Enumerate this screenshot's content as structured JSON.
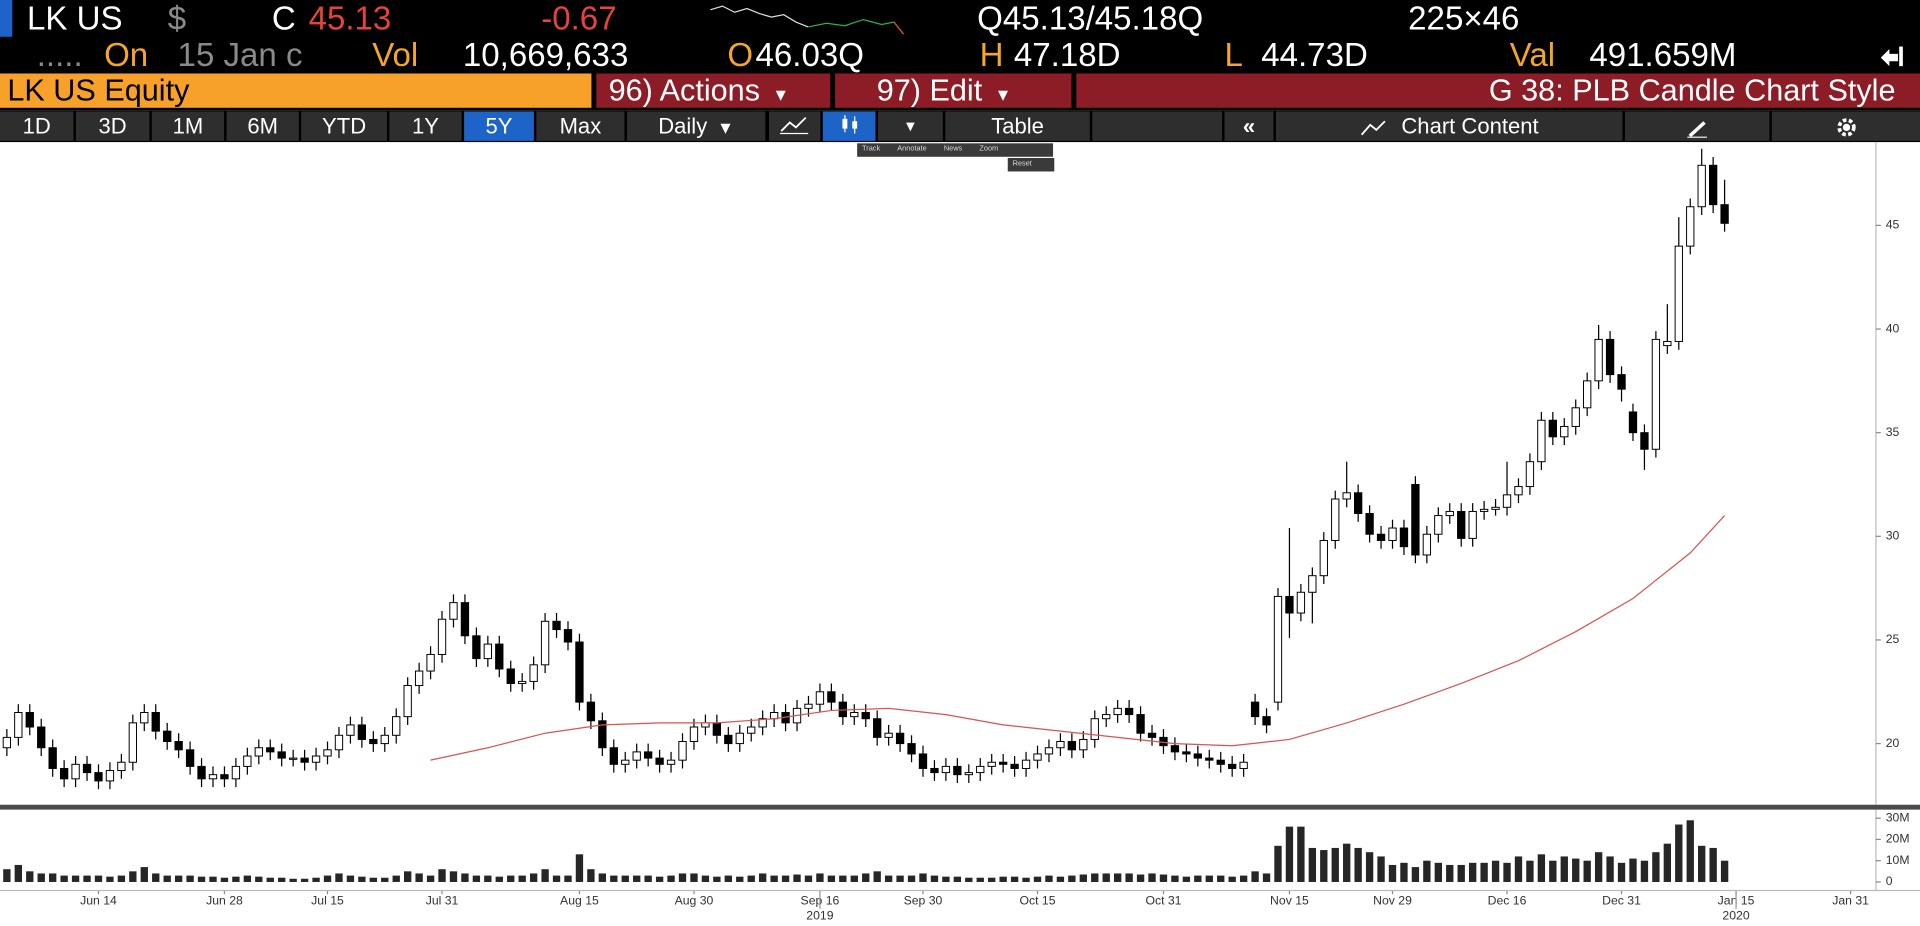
{
  "header": {
    "ticker": "LK US",
    "currency": "$",
    "close_label": "C",
    "close": "45.13",
    "change": "-0.67",
    "quote": "Q45.13/45.18Q",
    "size": "225×46",
    "dots": ".....",
    "on_label": "On",
    "date": "15 Jan c",
    "vol_label": "Vol",
    "volume": "10,669,633",
    "open_label": "O",
    "open": "46.03Q",
    "high_label": "H",
    "high": "47.18D",
    "low_label": "L",
    "low": "44.73D",
    "val_label": "Val",
    "value": "491.659M"
  },
  "menu": {
    "security": "LK US Equity",
    "actions": "96) Actions",
    "edit": "97) Edit",
    "function": "G 38: PLB Candle Chart Style"
  },
  "toolbar": {
    "ranges": [
      "1D",
      "3D",
      "1M",
      "6M",
      "YTD",
      "1Y",
      "5Y",
      "Max"
    ],
    "active_range": "5Y",
    "frequency": "Daily",
    "table": "Table",
    "content": "Chart Content",
    "popup": [
      "Track",
      "Annotate",
      "News",
      "Zoom"
    ],
    "reset": "Reset"
  },
  "chart_data": [
    {
      "type": "candlestick",
      "open": [
        19.8,
        20.3,
        21.5,
        20.8,
        19.8,
        18.8,
        18.3,
        19.0,
        18.6,
        18.2,
        18.7,
        19.1,
        21.0,
        21.5,
        20.6,
        20.1,
        19.7,
        18.9,
        18.3,
        18.5,
        18.3,
        18.9,
        19.4,
        19.8,
        19.6,
        19.3,
        19.3,
        19.1,
        19.4,
        19.7,
        20.4,
        20.9,
        20.2,
        20.0,
        20.4,
        21.3,
        22.8,
        23.5,
        24.3,
        26.0,
        26.8,
        25.2,
        24.1,
        24.8,
        23.6,
        22.9,
        23.0,
        23.8,
        25.9,
        25.5,
        24.9,
        22.0,
        21.1,
        19.8,
        19.0,
        19.2,
        19.6,
        19.3,
        19.0,
        19.2,
        20.1,
        20.8,
        21.0,
        20.4,
        20.0,
        20.5,
        20.8,
        21.2,
        21.5,
        21.0,
        21.7,
        21.9,
        22.5,
        22.0,
        21.3,
        21.5,
        21.2,
        20.3,
        20.5,
        20.0,
        19.5,
        18.8,
        18.6,
        18.9,
        18.5,
        18.6,
        18.9,
        19.1,
        19.0,
        18.8,
        19.2,
        19.5,
        19.8,
        20.1,
        19.7,
        20.2,
        21.2,
        21.4,
        21.7,
        21.4,
        20.5,
        20.3,
        19.9,
        19.6,
        19.5,
        19.3,
        19.2,
        19.0,
        18.8,
        22.0,
        21.3,
        22.0,
        27.1,
        26.3,
        27.3,
        28.1,
        29.8,
        31.8,
        32.1,
        31.1,
        30.1,
        29.8,
        30.4,
        32.5,
        29.1,
        30.1,
        31.0,
        31.2,
        29.9,
        31.2,
        31.3,
        31.4,
        32.0,
        32.4,
        33.6,
        35.6,
        34.8,
        35.3,
        36.2,
        37.5,
        39.5,
        37.8,
        36.0,
        35.0,
        34.2,
        39.2,
        39.4,
        44.0,
        45.9,
        47.9,
        46.0
      ],
      "high": [
        20.7,
        21.9,
        21.9,
        21.2,
        20.2,
        19.2,
        19.4,
        19.4,
        19.0,
        19.1,
        19.5,
        21.4,
        21.9,
        21.9,
        21.0,
        20.5,
        20.1,
        19.3,
        18.9,
        18.9,
        19.3,
        19.8,
        20.2,
        20.2,
        20.0,
        19.7,
        19.7,
        19.8,
        20.1,
        20.8,
        21.3,
        21.3,
        20.6,
        20.8,
        21.7,
        23.2,
        23.9,
        24.7,
        26.4,
        27.2,
        27.2,
        25.6,
        25.2,
        25.2,
        24.0,
        23.4,
        24.2,
        26.3,
        26.3,
        25.9,
        25.3,
        22.4,
        21.5,
        20.2,
        19.6,
        20.0,
        20.0,
        19.7,
        19.6,
        20.5,
        21.2,
        21.4,
        21.4,
        20.8,
        20.9,
        21.2,
        21.6,
        21.9,
        21.9,
        22.1,
        22.3,
        22.9,
        22.9,
        22.4,
        21.9,
        21.9,
        21.6,
        20.9,
        20.9,
        20.4,
        19.9,
        19.2,
        19.3,
        19.3,
        19.0,
        19.3,
        19.5,
        19.5,
        19.4,
        19.6,
        19.9,
        20.2,
        20.5,
        20.5,
        20.6,
        21.6,
        21.8,
        22.1,
        22.1,
        21.8,
        20.9,
        20.7,
        20.3,
        20.0,
        19.9,
        19.7,
        19.6,
        19.4,
        19.5,
        22.4,
        21.7,
        27.5,
        30.4,
        27.7,
        28.5,
        30.2,
        32.2,
        33.6,
        32.5,
        31.5,
        30.5,
        30.8,
        30.8,
        32.9,
        30.5,
        31.4,
        31.6,
        31.6,
        31.6,
        31.7,
        31.8,
        33.6,
        32.8,
        34.0,
        36.0,
        36.0,
        35.7,
        36.6,
        37.9,
        40.2,
        39.9,
        38.2,
        36.4,
        35.4,
        39.9,
        41.2,
        45.4,
        46.3,
        48.7,
        48.3,
        47.2
      ],
      "low": [
        19.4,
        19.9,
        20.4,
        19.4,
        18.4,
        17.9,
        17.9,
        18.2,
        17.8,
        17.8,
        18.3,
        18.7,
        20.6,
        20.2,
        19.7,
        19.3,
        18.5,
        17.9,
        17.9,
        17.9,
        17.9,
        18.5,
        19.0,
        19.2,
        18.9,
        18.9,
        18.7,
        18.7,
        19.0,
        19.3,
        20.0,
        19.8,
        19.6,
        19.6,
        20.0,
        20.9,
        22.4,
        23.1,
        23.9,
        25.6,
        24.8,
        23.7,
        23.7,
        23.2,
        22.5,
        22.5,
        22.6,
        23.4,
        25.1,
        24.5,
        21.6,
        20.7,
        19.4,
        18.6,
        18.6,
        18.8,
        18.9,
        18.6,
        18.6,
        18.8,
        19.7,
        20.4,
        20.0,
        19.6,
        19.6,
        20.1,
        20.4,
        20.8,
        20.6,
        20.6,
        21.3,
        21.5,
        21.6,
        20.9,
        20.9,
        20.8,
        19.9,
        19.9,
        19.6,
        19.1,
        18.4,
        18.2,
        18.2,
        18.1,
        18.1,
        18.2,
        18.5,
        18.6,
        18.4,
        18.4,
        18.8,
        19.1,
        19.4,
        19.3,
        19.3,
        19.8,
        20.8,
        21.0,
        21.0,
        20.1,
        19.9,
        19.5,
        19.2,
        19.1,
        18.9,
        18.8,
        18.6,
        18.4,
        18.4,
        20.9,
        20.5,
        21.6,
        25.1,
        25.9,
        25.8,
        27.7,
        29.4,
        31.4,
        30.7,
        29.7,
        29.4,
        29.4,
        29.1,
        28.7,
        28.7,
        29.7,
        30.6,
        29.5,
        29.5,
        30.8,
        31.0,
        31.0,
        31.6,
        32.0,
        33.2,
        34.4,
        34.4,
        34.9,
        35.8,
        37.1,
        37.4,
        36.5,
        34.6,
        33.2,
        33.8,
        38.8,
        39.0,
        43.6,
        45.5,
        45.6,
        44.7
      ],
      "close": [
        20.3,
        21.5,
        20.8,
        19.8,
        18.8,
        18.3,
        19.0,
        18.6,
        18.2,
        18.7,
        19.1,
        21.0,
        21.5,
        20.6,
        20.1,
        19.7,
        18.9,
        18.3,
        18.5,
        18.3,
        18.9,
        19.4,
        19.8,
        19.6,
        19.3,
        19.3,
        19.1,
        19.4,
        19.7,
        20.4,
        20.9,
        20.2,
        20.0,
        20.4,
        21.3,
        22.8,
        23.5,
        24.3,
        26.0,
        26.8,
        25.2,
        24.1,
        24.8,
        23.6,
        22.9,
        23.0,
        23.8,
        25.9,
        25.5,
        24.9,
        22.0,
        21.1,
        19.8,
        19.0,
        19.2,
        19.6,
        19.3,
        19.0,
        19.2,
        20.1,
        20.8,
        21.0,
        20.4,
        20.0,
        20.5,
        20.8,
        21.2,
        21.5,
        21.0,
        21.7,
        21.9,
        22.5,
        22.0,
        21.3,
        21.5,
        21.2,
        20.3,
        20.5,
        20.0,
        19.5,
        18.8,
        18.6,
        18.9,
        18.5,
        18.6,
        18.9,
        19.1,
        19.0,
        18.8,
        19.2,
        19.5,
        19.8,
        20.1,
        19.7,
        20.2,
        21.2,
        21.4,
        21.7,
        21.4,
        20.5,
        20.3,
        19.9,
        19.6,
        19.5,
        19.3,
        19.2,
        19.0,
        18.8,
        19.1,
        21.3,
        20.9,
        27.1,
        26.3,
        27.3,
        28.1,
        29.8,
        31.8,
        32.1,
        31.1,
        30.1,
        29.8,
        30.4,
        29.5,
        29.1,
        30.1,
        31.0,
        31.2,
        29.9,
        31.2,
        31.3,
        31.4,
        32.0,
        32.4,
        33.6,
        35.6,
        34.8,
        35.3,
        36.2,
        37.5,
        39.5,
        37.8,
        37.1,
        35.0,
        34.2,
        39.5,
        39.4,
        44.0,
        45.9,
        47.9,
        46.0,
        45.1
      ],
      "up_color": "#ffffff",
      "down_color": "#000000",
      "moving_average": {
        "color": "#d9534f",
        "x": [
          37,
          42,
          47,
          52,
          57,
          62,
          67,
          72,
          77,
          82,
          87,
          92,
          97,
          102,
          107,
          112,
          117,
          122,
          127,
          132,
          137,
          142,
          147,
          150
        ],
        "values": [
          19.2,
          19.8,
          20.5,
          20.9,
          21.0,
          21.0,
          21.2,
          21.6,
          21.7,
          21.4,
          20.9,
          20.6,
          20.3,
          20.0,
          19.9,
          20.2,
          21.0,
          21.9,
          22.9,
          24.0,
          25.4,
          27.0,
          29.2,
          31.0
        ]
      },
      "xlim": [
        -0.6,
        163
      ],
      "xticks": [
        {
          "value": 8,
          "label": "Jun 14"
        },
        {
          "value": 19,
          "label": "Jun 28"
        },
        {
          "value": 28,
          "label": "Jul 15"
        },
        {
          "value": 38,
          "label": "Jul 31"
        },
        {
          "value": 50,
          "label": "Aug 15"
        },
        {
          "value": 60,
          "label": "Aug 30"
        },
        {
          "value": 71,
          "label": "Sep 16"
        },
        {
          "value": 80,
          "label": "Sep 30"
        },
        {
          "value": 90,
          "label": "Oct 15"
        },
        {
          "value": 101,
          "label": "Oct 31"
        },
        {
          "value": 112,
          "label": "Nov 15"
        },
        {
          "value": 121,
          "label": "Nov 29"
        },
        {
          "value": 131,
          "label": "Dec 16"
        },
        {
          "value": 141,
          "label": "Dec 31"
        },
        {
          "value": 151,
          "label": "Jan 15"
        },
        {
          "value": 161,
          "label": "Jan 31"
        }
      ],
      "year_ticks": [
        {
          "value": 71,
          "label": "2019"
        },
        {
          "value": 151,
          "label": "2020"
        }
      ],
      "ylim": [
        17.05,
        48.96
      ],
      "yticks": [
        20,
        25,
        30,
        35,
        40,
        45
      ]
    },
    {
      "type": "bar",
      "color": "#262626",
      "values": [
        6,
        8,
        5,
        4,
        4,
        3,
        3,
        3,
        3,
        2.5,
        3,
        5,
        7,
        4,
        3,
        3,
        3,
        2.5,
        2.5,
        2,
        2.5,
        3,
        2.5,
        2,
        2,
        1.5,
        1.5,
        2,
        3,
        4,
        3,
        2.5,
        2,
        2,
        3,
        5,
        4,
        3,
        6,
        5,
        4,
        3,
        3,
        2.5,
        3,
        3,
        4,
        6,
        3,
        3,
        13,
        6,
        4,
        3,
        3,
        3,
        3,
        2.5,
        3,
        4,
        4,
        3,
        2.5,
        3,
        2.5,
        3,
        4,
        3,
        3,
        3.5,
        3,
        4,
        3,
        3,
        3,
        4,
        5,
        3,
        3,
        3,
        4,
        3,
        2.5,
        2.5,
        2,
        2,
        2,
        2.5,
        2.5,
        2,
        2.5,
        3,
        2.5,
        3,
        3.5,
        4,
        4,
        4,
        4,
        3.5,
        4,
        3.5,
        3,
        2.5,
        3,
        3,
        3,
        2.5,
        3,
        5,
        4,
        17,
        26,
        26,
        16,
        15,
        16,
        18,
        16,
        14,
        12,
        8,
        9,
        7,
        10,
        9,
        8,
        8,
        9,
        9,
        10,
        9,
        12,
        10,
        13,
        10,
        12,
        11,
        10,
        14,
        12,
        9,
        11,
        10,
        14,
        18,
        27,
        29,
        17,
        16,
        10
      ],
      "xlim": [
        -0.6,
        163
      ],
      "ylim": [
        -4,
        34
      ],
      "yticks": [
        0,
        {
          "value": 10,
          "label": "10M"
        },
        {
          "value": 20,
          "label": "20M"
        },
        {
          "value": 30,
          "label": "30M"
        }
      ]
    }
  ]
}
